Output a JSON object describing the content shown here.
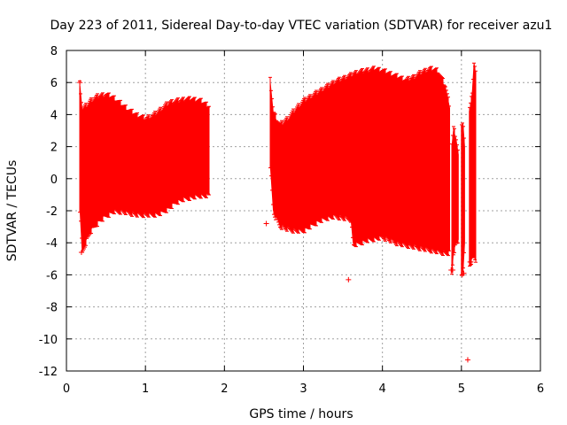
{
  "chart_data": {
    "type": "scatter",
    "title": "Day 223 of 2011, Sidereal Day-to-day VTEC variation (SDTVAR) for receiver azu1",
    "xlabel": "GPS time / hours",
    "ylabel": "SDTVAR / TECUs",
    "xlim": [
      0,
      6
    ],
    "ylim": [
      -12,
      8
    ],
    "xticks": [
      "0",
      "1",
      "2",
      "3",
      "4",
      "5",
      "6"
    ],
    "yticks": [
      "8",
      "6",
      "4",
      "2",
      "0",
      "-2",
      "-4",
      "-6",
      "-8",
      "-10",
      "-12"
    ],
    "grid": true,
    "color": "#ff0000",
    "series": [
      {
        "name": "SDTVAR envelope (error bars) segment 1",
        "x": [
          0.17,
          0.2,
          0.25,
          0.3,
          0.4,
          0.5,
          0.6,
          0.7,
          0.8,
          0.9,
          1.0,
          1.1,
          1.2,
          1.3,
          1.4,
          1.5,
          1.6,
          1.7,
          1.8
        ],
        "upper": [
          5.8,
          4.2,
          4.4,
          4.7,
          5.0,
          5.1,
          4.9,
          4.5,
          4.1,
          3.8,
          3.6,
          3.8,
          4.2,
          4.6,
          4.7,
          4.8,
          4.8,
          4.7,
          4.4
        ],
        "lower": [
          -1.8,
          -4.5,
          -3.8,
          -3.2,
          -2.6,
          -2.2,
          -1.9,
          -1.9,
          -2.0,
          -2.1,
          -2.1,
          -2.1,
          -2.0,
          -1.7,
          -1.3,
          -1.1,
          -1.0,
          -0.9,
          -0.9
        ]
      },
      {
        "name": "SDTVAR envelope (error bars) segment 2",
        "x": [
          2.58,
          2.62,
          2.7,
          2.8,
          2.9,
          3.0,
          3.1,
          3.2,
          3.3,
          3.4,
          3.5,
          3.6,
          3.63,
          3.7,
          3.8,
          3.9,
          4.0,
          4.1,
          4.2,
          4.3,
          4.4,
          4.5,
          4.6,
          4.7,
          4.8,
          4.85
        ],
        "upper": [
          6.0,
          4.0,
          3.2,
          3.6,
          4.2,
          4.7,
          5.0,
          5.3,
          5.6,
          5.9,
          6.1,
          6.3,
          6.4,
          6.5,
          6.6,
          6.7,
          6.6,
          6.4,
          6.2,
          6.0,
          6.2,
          6.5,
          6.7,
          6.6,
          5.6,
          4.4
        ],
        "lower": [
          1.0,
          -2.0,
          -2.8,
          -3.0,
          -3.1,
          -3.1,
          -2.8,
          -2.5,
          -2.3,
          -2.2,
          -2.3,
          -2.4,
          -4.0,
          -3.9,
          -3.7,
          -3.6,
          -3.5,
          -3.7,
          -3.9,
          -4.0,
          -4.1,
          -4.2,
          -4.3,
          -4.4,
          -4.5,
          -4.5
        ]
      },
      {
        "name": "SDTVAR envelope (error bars) segment 3",
        "x": [
          4.88,
          4.9,
          4.93,
          4.96
        ],
        "upper": [
          2.0,
          3.0,
          2.5,
          1.5
        ],
        "lower": [
          -5.8,
          -4.5,
          -4.0,
          -3.8
        ]
      },
      {
        "name": "SDTVAR envelope (error bars) segment 4",
        "x": [
          5.0,
          5.02,
          5.04
        ],
        "upper": [
          3.3,
          3.4,
          2.0
        ],
        "lower": [
          -6.0,
          -5.8,
          -4.0
        ]
      },
      {
        "name": "SDTVAR envelope (error bars) segment 5",
        "x": [
          5.1,
          5.12,
          5.14,
          5.16,
          5.18
        ],
        "upper": [
          4.2,
          4.6,
          5.5,
          7.2,
          6.5
        ],
        "lower": [
          -5.3,
          -5.1,
          -4.9,
          -4.8,
          -5.0
        ]
      }
    ],
    "outliers": {
      "x": [
        0.17,
        0.19,
        2.53,
        3.57,
        4.87,
        4.89,
        5.01,
        5.03,
        5.08,
        5.11,
        5.12
      ],
      "y": [
        6.0,
        -4.6,
        -2.8,
        -6.3,
        -5.7,
        -5.7,
        -6.0,
        -5.9,
        -11.3,
        -5.2,
        -5.2
      ]
    }
  }
}
